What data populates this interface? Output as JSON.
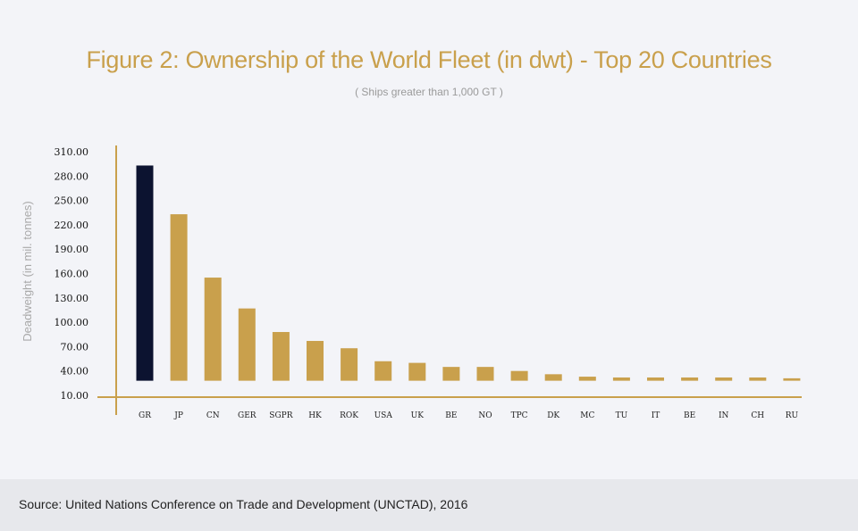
{
  "header": {
    "title": "Figure 2:  Ownership of the World Fleet (in dwt) - Top 20 Countries",
    "subtitle": "( Ships greater than 1,000 GT )"
  },
  "footer": {
    "source": "Source: United Nations Conference on Trade and Development (UNCTAD), 2016"
  },
  "colors": {
    "bar": "#c9a04c",
    "highlight": "#0c1330",
    "axis": "#c9a04c",
    "background": "#f3f4f8",
    "footer_bg": "#e7e8ec"
  },
  "chart_data": {
    "type": "bar",
    "title": "Figure 2:  Ownership of the World Fleet (in dwt) - Top 20 Countries",
    "subtitle": "( Ships greater than 1,000 GT )",
    "xlabel": "",
    "ylabel": "Deadweight (in mil. tonnes)",
    "categories": [
      "GR",
      "JP",
      "CN",
      "GER",
      "SGPR",
      "HK",
      "ROK",
      "USA",
      "UK",
      "BE",
      "NO",
      "TPC",
      "DK",
      "MC",
      "TU",
      "IT",
      "BE",
      "IN",
      "CH",
      "RU"
    ],
    "values": [
      293,
      233,
      155,
      117,
      88,
      77,
      68,
      52,
      50,
      45,
      45,
      40,
      36,
      33,
      32,
      32,
      32,
      32,
      32,
      31
    ],
    "baseline": 28,
    "highlight_index": 0,
    "yticks": [
      "10.00",
      "40.00",
      "70.00",
      "100.00",
      "130.00",
      "160.00",
      "190.00",
      "220.00",
      "250.00",
      "280.00",
      "310.00"
    ],
    "ylim": [
      10,
      310
    ],
    "grid": false,
    "legend": "none"
  }
}
